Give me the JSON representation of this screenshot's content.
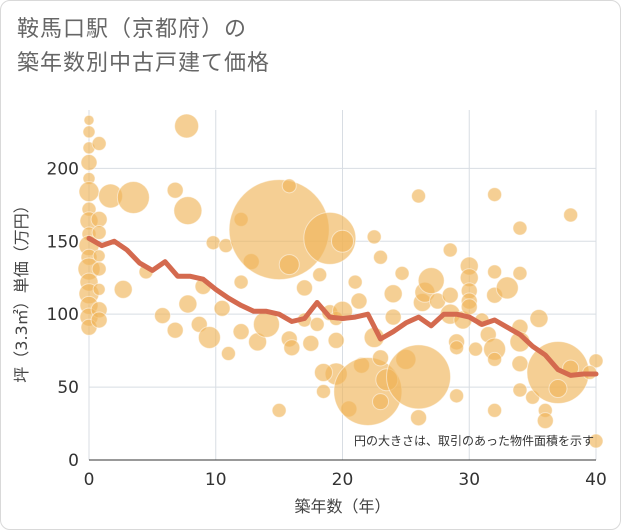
{
  "title_line1": "鞍馬口駅（京都府）の",
  "title_line2": "築年数別中古戸建て価格",
  "chart_data": {
    "type": "scatter",
    "xlabel": "築年数（年）",
    "ylabel": "坪（3.3㎡）単価（万円）",
    "xlim": [
      0,
      40
    ],
    "ylim": [
      0,
      240
    ],
    "xticks": [
      "0",
      "10",
      "20",
      "30",
      "40"
    ],
    "yticks": [
      "0",
      "50",
      "100",
      "150",
      "200"
    ],
    "annotation": "円の大きさは、取引のあった物件面積を示す",
    "grid": true,
    "colors": {
      "bubble": "#f0b55a",
      "line": "#d46a4f"
    },
    "points": [
      {
        "x": 0,
        "y": 233,
        "s": 5
      },
      {
        "x": 0,
        "y": 225,
        "s": 6
      },
      {
        "x": 0,
        "y": 214,
        "s": 6
      },
      {
        "x": 0,
        "y": 204,
        "s": 8
      },
      {
        "x": 0,
        "y": 193,
        "s": 6
      },
      {
        "x": 0,
        "y": 184,
        "s": 10
      },
      {
        "x": 0,
        "y": 172,
        "s": 7
      },
      {
        "x": 0,
        "y": 164,
        "s": 9
      },
      {
        "x": 0,
        "y": 155,
        "s": 7
      },
      {
        "x": 0,
        "y": 147,
        "s": 10
      },
      {
        "x": 0,
        "y": 139,
        "s": 8
      },
      {
        "x": 0,
        "y": 131,
        "s": 11
      },
      {
        "x": 0,
        "y": 122,
        "s": 9
      },
      {
        "x": 0,
        "y": 114,
        "s": 10
      },
      {
        "x": 0,
        "y": 106,
        "s": 9
      },
      {
        "x": 0,
        "y": 98,
        "s": 9
      },
      {
        "x": 0,
        "y": 91,
        "s": 8
      },
      {
        "x": 0.8,
        "y": 217,
        "s": 7
      },
      {
        "x": 0.8,
        "y": 165,
        "s": 8
      },
      {
        "x": 0.8,
        "y": 156,
        "s": 7
      },
      {
        "x": 0.8,
        "y": 140,
        "s": 6
      },
      {
        "x": 0.8,
        "y": 131,
        "s": 7
      },
      {
        "x": 0.8,
        "y": 117,
        "s": 6
      },
      {
        "x": 0.8,
        "y": 103,
        "s": 8
      },
      {
        "x": 0.8,
        "y": 96,
        "s": 8
      },
      {
        "x": 1.7,
        "y": 181,
        "s": 12
      },
      {
        "x": 2.7,
        "y": 117,
        "s": 9
      },
      {
        "x": 3.5,
        "y": 180,
        "s": 16
      },
      {
        "x": 4.5,
        "y": 129,
        "s": 7
      },
      {
        "x": 5.8,
        "y": 99,
        "s": 8
      },
      {
        "x": 6.8,
        "y": 89,
        "s": 8
      },
      {
        "x": 6.8,
        "y": 185,
        "s": 8
      },
      {
        "x": 7.7,
        "y": 229,
        "s": 12
      },
      {
        "x": 7.8,
        "y": 171,
        "s": 14
      },
      {
        "x": 7.8,
        "y": 107,
        "s": 9
      },
      {
        "x": 8.7,
        "y": 93,
        "s": 8
      },
      {
        "x": 9,
        "y": 119,
        "s": 8
      },
      {
        "x": 9.5,
        "y": 84,
        "s": 11
      },
      {
        "x": 9.8,
        "y": 149,
        "s": 7
      },
      {
        "x": 10.8,
        "y": 147,
        "s": 7
      },
      {
        "x": 11,
        "y": 73,
        "s": 7
      },
      {
        "x": 10.5,
        "y": 104,
        "s": 8
      },
      {
        "x": 12,
        "y": 165,
        "s": 7
      },
      {
        "x": 12,
        "y": 122,
        "s": 7
      },
      {
        "x": 12,
        "y": 88,
        "s": 8
      },
      {
        "x": 12.8,
        "y": 136,
        "s": 8
      },
      {
        "x": 13.3,
        "y": 81,
        "s": 9
      },
      {
        "x": 14,
        "y": 93,
        "s": 13
      },
      {
        "x": 15,
        "y": 158,
        "s": 50
      },
      {
        "x": 15.8,
        "y": 188,
        "s": 7
      },
      {
        "x": 15.8,
        "y": 134,
        "s": 10
      },
      {
        "x": 15.8,
        "y": 83,
        "s": 8
      },
      {
        "x": 16,
        "y": 77,
        "s": 8
      },
      {
        "x": 17,
        "y": 96,
        "s": 7
      },
      {
        "x": 17,
        "y": 118,
        "s": 8
      },
      {
        "x": 17.5,
        "y": 80,
        "s": 8
      },
      {
        "x": 15,
        "y": 34,
        "s": 7
      },
      {
        "x": 18,
        "y": 93,
        "s": 7
      },
      {
        "x": 18.2,
        "y": 127,
        "s": 7
      },
      {
        "x": 19,
        "y": 152,
        "s": 26
      },
      {
        "x": 19,
        "y": 101,
        "s": 8
      },
      {
        "x": 19.5,
        "y": 82,
        "s": 8
      },
      {
        "x": 19.5,
        "y": 59,
        "s": 11
      },
      {
        "x": 18.5,
        "y": 47,
        "s": 7
      },
      {
        "x": 18.5,
        "y": 60,
        "s": 9
      },
      {
        "x": 19.5,
        "y": 97,
        "s": 7
      },
      {
        "x": 20,
        "y": 150,
        "s": 11
      },
      {
        "x": 20,
        "y": 102,
        "s": 10
      },
      {
        "x": 20.5,
        "y": 35,
        "s": 8
      },
      {
        "x": 21,
        "y": 122,
        "s": 7
      },
      {
        "x": 21.3,
        "y": 109,
        "s": 8
      },
      {
        "x": 21.5,
        "y": 65,
        "s": 8
      },
      {
        "x": 22,
        "y": 47,
        "s": 34
      },
      {
        "x": 22.5,
        "y": 84,
        "s": 10
      },
      {
        "x": 22.5,
        "y": 153,
        "s": 7
      },
      {
        "x": 23,
        "y": 139,
        "s": 7
      },
      {
        "x": 23,
        "y": 70,
        "s": 8
      },
      {
        "x": 23,
        "y": 40,
        "s": 8
      },
      {
        "x": 23.5,
        "y": 55,
        "s": 11
      },
      {
        "x": 24,
        "y": 114,
        "s": 9
      },
      {
        "x": 24,
        "y": 98,
        "s": 8
      },
      {
        "x": 24.7,
        "y": 128,
        "s": 7
      },
      {
        "x": 25,
        "y": 69,
        "s": 10
      },
      {
        "x": 26,
        "y": 57,
        "s": 32
      },
      {
        "x": 26,
        "y": 181,
        "s": 7
      },
      {
        "x": 26,
        "y": 29,
        "s": 8
      },
      {
        "x": 26.3,
        "y": 108,
        "s": 9
      },
      {
        "x": 26.5,
        "y": 115,
        "s": 10
      },
      {
        "x": 27,
        "y": 123,
        "s": 13
      },
      {
        "x": 27.5,
        "y": 109,
        "s": 8
      },
      {
        "x": 28.5,
        "y": 100,
        "s": 10
      },
      {
        "x": 28.5,
        "y": 144,
        "s": 7
      },
      {
        "x": 28.5,
        "y": 113,
        "s": 8
      },
      {
        "x": 29,
        "y": 81,
        "s": 8
      },
      {
        "x": 29,
        "y": 44,
        "s": 7
      },
      {
        "x": 29,
        "y": 77,
        "s": 7
      },
      {
        "x": 29.5,
        "y": 96,
        "s": 9
      },
      {
        "x": 30,
        "y": 133,
        "s": 9
      },
      {
        "x": 30,
        "y": 125,
        "s": 9
      },
      {
        "x": 30,
        "y": 116,
        "s": 8
      },
      {
        "x": 30,
        "y": 109,
        "s": 8
      },
      {
        "x": 30,
        "y": 105,
        "s": 8
      },
      {
        "x": 30.5,
        "y": 76,
        "s": 7
      },
      {
        "x": 31,
        "y": 96,
        "s": 7
      },
      {
        "x": 31.5,
        "y": 86,
        "s": 8
      },
      {
        "x": 32,
        "y": 182,
        "s": 7
      },
      {
        "x": 32,
        "y": 129,
        "s": 7
      },
      {
        "x": 32,
        "y": 113,
        "s": 8
      },
      {
        "x": 32,
        "y": 76,
        "s": 11
      },
      {
        "x": 32,
        "y": 69,
        "s": 7
      },
      {
        "x": 32,
        "y": 34,
        "s": 7
      },
      {
        "x": 33,
        "y": 118,
        "s": 11
      },
      {
        "x": 34,
        "y": 159,
        "s": 7
      },
      {
        "x": 34,
        "y": 128,
        "s": 7
      },
      {
        "x": 34,
        "y": 91,
        "s": 8
      },
      {
        "x": 34,
        "y": 81,
        "s": 10
      },
      {
        "x": 34,
        "y": 66,
        "s": 8
      },
      {
        "x": 34,
        "y": 48,
        "s": 7
      },
      {
        "x": 35,
        "y": 43,
        "s": 7
      },
      {
        "x": 35.5,
        "y": 97,
        "s": 9
      },
      {
        "x": 36,
        "y": 34,
        "s": 7
      },
      {
        "x": 36,
        "y": 27,
        "s": 8
      },
      {
        "x": 37,
        "y": 60,
        "s": 31
      },
      {
        "x": 37,
        "y": 49,
        "s": 9
      },
      {
        "x": 38,
        "y": 168,
        "s": 7
      },
      {
        "x": 38,
        "y": 63,
        "s": 8
      },
      {
        "x": 40,
        "y": 68,
        "s": 7
      },
      {
        "x": 40,
        "y": 13,
        "s": 7
      },
      {
        "x": 39.5,
        "y": 60,
        "s": 7
      }
    ],
    "trend": [
      {
        "x": 0,
        "y": 152
      },
      {
        "x": 1,
        "y": 147
      },
      {
        "x": 2,
        "y": 150
      },
      {
        "x": 3,
        "y": 144
      },
      {
        "x": 4,
        "y": 135
      },
      {
        "x": 5,
        "y": 130
      },
      {
        "x": 6,
        "y": 136
      },
      {
        "x": 7,
        "y": 126
      },
      {
        "x": 8,
        "y": 126
      },
      {
        "x": 9,
        "y": 124
      },
      {
        "x": 10,
        "y": 117
      },
      {
        "x": 11,
        "y": 111
      },
      {
        "x": 12,
        "y": 106
      },
      {
        "x": 13,
        "y": 102
      },
      {
        "x": 14,
        "y": 102
      },
      {
        "x": 15,
        "y": 100
      },
      {
        "x": 16,
        "y": 95
      },
      {
        "x": 17,
        "y": 97
      },
      {
        "x": 18,
        "y": 108
      },
      {
        "x": 19,
        "y": 98
      },
      {
        "x": 20,
        "y": 97
      },
      {
        "x": 21,
        "y": 98
      },
      {
        "x": 22,
        "y": 100
      },
      {
        "x": 23,
        "y": 83
      },
      {
        "x": 24,
        "y": 88
      },
      {
        "x": 25,
        "y": 94
      },
      {
        "x": 26,
        "y": 98
      },
      {
        "x": 27,
        "y": 92
      },
      {
        "x": 28,
        "y": 100
      },
      {
        "x": 29,
        "y": 100
      },
      {
        "x": 30,
        "y": 98
      },
      {
        "x": 31,
        "y": 93
      },
      {
        "x": 32,
        "y": 96
      },
      {
        "x": 33,
        "y": 91
      },
      {
        "x": 34,
        "y": 86
      },
      {
        "x": 35,
        "y": 78
      },
      {
        "x": 36,
        "y": 72
      },
      {
        "x": 37,
        "y": 62
      },
      {
        "x": 38,
        "y": 58
      },
      {
        "x": 39,
        "y": 59
      },
      {
        "x": 40,
        "y": 59
      }
    ]
  }
}
